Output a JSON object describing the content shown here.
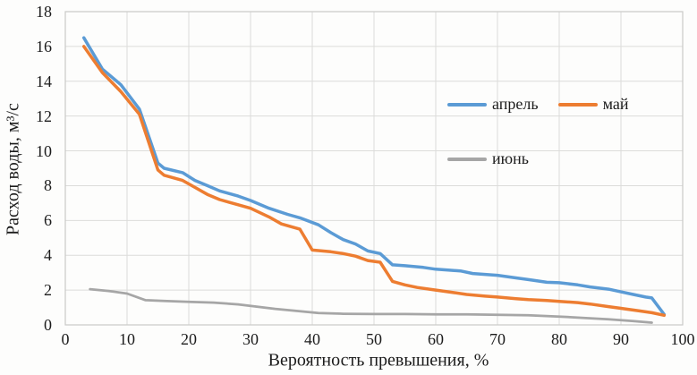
{
  "chart_data": {
    "type": "line",
    "title": "",
    "xlabel": "Вероятность превышения, %",
    "ylabel": "Расход воды, м³/с",
    "xlim": [
      0,
      100
    ],
    "ylim": [
      0,
      18
    ],
    "xticks": [
      0,
      10,
      20,
      30,
      40,
      50,
      60,
      70,
      80,
      90,
      100
    ],
    "yticks": [
      0,
      2,
      4,
      6,
      8,
      10,
      12,
      14,
      16,
      18
    ],
    "grid": true,
    "legend_position": "inside-upper-right",
    "colors": {
      "grid": "#dcdcda",
      "border": "#c9c9c7",
      "text": "#1c1c1c"
    },
    "series": [
      {
        "id": "april",
        "name": "апрель",
        "color": "#5B9BD5",
        "width": 3.5,
        "points": [
          [
            3,
            16.5
          ],
          [
            6,
            14.7
          ],
          [
            9,
            13.8
          ],
          [
            12,
            12.4
          ],
          [
            15,
            9.3
          ],
          [
            16,
            9.0
          ],
          [
            19,
            8.75
          ],
          [
            21,
            8.3
          ],
          [
            23,
            8.0
          ],
          [
            25,
            7.7
          ],
          [
            28,
            7.4
          ],
          [
            30,
            7.15
          ],
          [
            33,
            6.7
          ],
          [
            36,
            6.35
          ],
          [
            38,
            6.15
          ],
          [
            41,
            5.75
          ],
          [
            43,
            5.3
          ],
          [
            45,
            4.9
          ],
          [
            47,
            4.65
          ],
          [
            49,
            4.25
          ],
          [
            51,
            4.1
          ],
          [
            53,
            3.45
          ],
          [
            55,
            3.4
          ],
          [
            58,
            3.3
          ],
          [
            60,
            3.2
          ],
          [
            62,
            3.15
          ],
          [
            64,
            3.1
          ],
          [
            66,
            2.95
          ],
          [
            68,
            2.9
          ],
          [
            70,
            2.85
          ],
          [
            73,
            2.7
          ],
          [
            75,
            2.6
          ],
          [
            78,
            2.45
          ],
          [
            80,
            2.42
          ],
          [
            83,
            2.3
          ],
          [
            85,
            2.18
          ],
          [
            88,
            2.05
          ],
          [
            90,
            1.9
          ],
          [
            92,
            1.75
          ],
          [
            94,
            1.6
          ],
          [
            95,
            1.55
          ],
          [
            97,
            0.6
          ]
        ]
      },
      {
        "id": "may",
        "name": "май",
        "color": "#ED7D31",
        "width": 3.5,
        "points": [
          [
            3,
            16.0
          ],
          [
            6,
            14.5
          ],
          [
            9,
            13.4
          ],
          [
            12,
            12.1
          ],
          [
            15,
            8.9
          ],
          [
            16,
            8.6
          ],
          [
            19,
            8.3
          ],
          [
            21,
            7.9
          ],
          [
            23,
            7.5
          ],
          [
            25,
            7.2
          ],
          [
            28,
            6.9
          ],
          [
            30,
            6.7
          ],
          [
            33,
            6.2
          ],
          [
            35,
            5.8
          ],
          [
            38,
            5.5
          ],
          [
            40,
            4.3
          ],
          [
            43,
            4.2
          ],
          [
            45,
            4.1
          ],
          [
            47,
            3.95
          ],
          [
            49,
            3.7
          ],
          [
            51,
            3.6
          ],
          [
            53,
            2.5
          ],
          [
            55,
            2.3
          ],
          [
            57,
            2.15
          ],
          [
            60,
            2.0
          ],
          [
            63,
            1.85
          ],
          [
            65,
            1.75
          ],
          [
            68,
            1.65
          ],
          [
            70,
            1.6
          ],
          [
            73,
            1.5
          ],
          [
            75,
            1.45
          ],
          [
            78,
            1.4
          ],
          [
            80,
            1.35
          ],
          [
            83,
            1.28
          ],
          [
            85,
            1.2
          ],
          [
            88,
            1.05
          ],
          [
            90,
            0.95
          ],
          [
            93,
            0.8
          ],
          [
            95,
            0.7
          ],
          [
            97,
            0.55
          ]
        ]
      },
      {
        "id": "june",
        "name": "июнь",
        "color": "#A6A6A6",
        "width": 2.75,
        "points": [
          [
            4,
            2.05
          ],
          [
            7,
            1.95
          ],
          [
            10,
            1.8
          ],
          [
            13,
            1.42
          ],
          [
            16,
            1.38
          ],
          [
            20,
            1.32
          ],
          [
            24,
            1.28
          ],
          [
            28,
            1.18
          ],
          [
            31,
            1.05
          ],
          [
            34,
            0.92
          ],
          [
            38,
            0.78
          ],
          [
            41,
            0.68
          ],
          [
            45,
            0.64
          ],
          [
            50,
            0.62
          ],
          [
            55,
            0.62
          ],
          [
            60,
            0.6
          ],
          [
            65,
            0.6
          ],
          [
            70,
            0.58
          ],
          [
            75,
            0.55
          ],
          [
            80,
            0.48
          ],
          [
            84,
            0.4
          ],
          [
            88,
            0.32
          ],
          [
            92,
            0.22
          ],
          [
            95,
            0.13
          ]
        ]
      }
    ]
  }
}
